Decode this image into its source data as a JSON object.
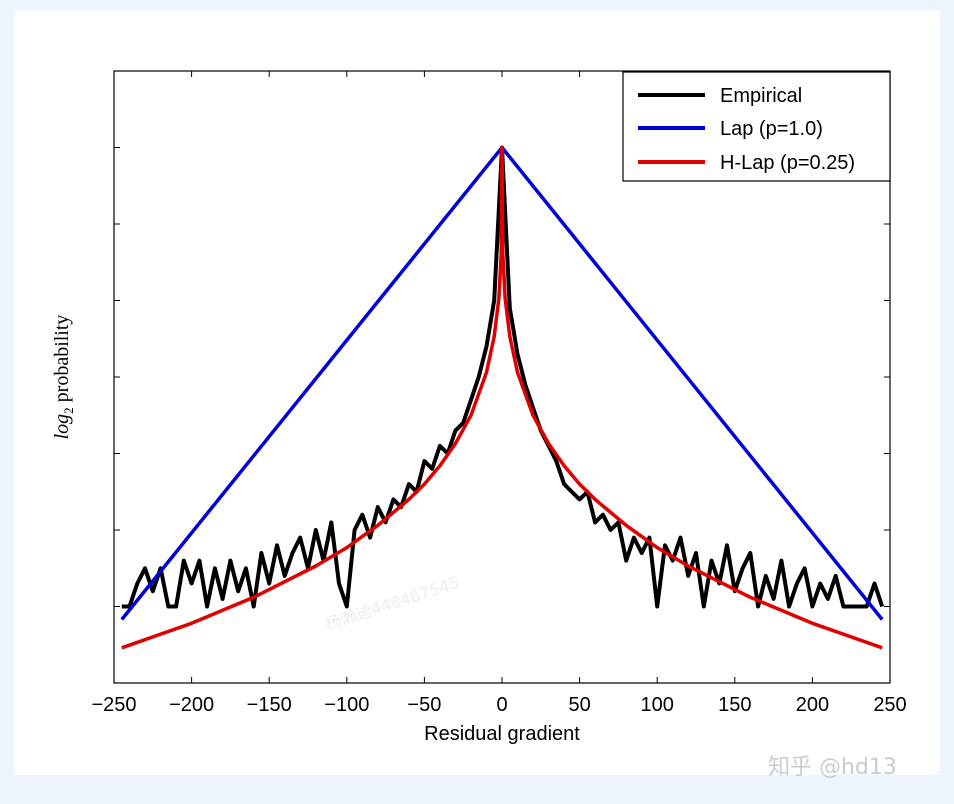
{
  "chart_data": {
    "type": "line",
    "xlabel": "Residual gradient",
    "ylabel": "log2 probability",
    "ylabel_parts": {
      "base": "log",
      "sub": "2",
      "rest": " probability"
    },
    "xlim": [
      -250,
      250
    ],
    "ylim": [
      -1,
      7
    ],
    "xticks": [
      -250,
      -200,
      -150,
      -100,
      -50,
      0,
      50,
      100,
      150,
      200,
      250
    ],
    "xtick_labels": [
      "−250",
      "−200",
      "−150",
      "−100",
      "−50",
      "0",
      "50",
      "100",
      "150",
      "200",
      "250"
    ],
    "yticks": [
      0,
      1,
      2,
      3,
      4,
      5,
      6
    ],
    "ytick_labels_shown": false,
    "grid": false,
    "legend_placement": "top-right",
    "series": [
      {
        "name": "Empirical",
        "color": "#000000",
        "x": [
          -245,
          -240,
          -235,
          -230,
          -225,
          -220,
          -215,
          -210,
          -205,
          -200,
          -195,
          -190,
          -185,
          -180,
          -175,
          -170,
          -165,
          -160,
          -155,
          -150,
          -145,
          -140,
          -135,
          -130,
          -125,
          -120,
          -115,
          -110,
          -105,
          -100,
          -95,
          -90,
          -85,
          -80,
          -75,
          -70,
          -65,
          -60,
          -55,
          -50,
          -45,
          -40,
          -35,
          -30,
          -25,
          -20,
          -15,
          -10,
          -5,
          0,
          5,
          10,
          15,
          20,
          25,
          30,
          35,
          40,
          45,
          50,
          55,
          60,
          65,
          70,
          75,
          80,
          85,
          90,
          95,
          100,
          105,
          110,
          115,
          120,
          125,
          130,
          135,
          140,
          145,
          150,
          155,
          160,
          165,
          170,
          175,
          180,
          185,
          190,
          195,
          200,
          205,
          210,
          215,
          220,
          225,
          230,
          235,
          240,
          245
        ],
        "y": [
          0,
          0,
          0.3,
          0.5,
          0.2,
          0.5,
          0,
          0,
          0.6,
          0.3,
          0.6,
          0,
          0.5,
          0.1,
          0.6,
          0.2,
          0.5,
          0,
          0.7,
          0.3,
          0.8,
          0.4,
          0.7,
          0.9,
          0.5,
          1.0,
          0.6,
          1.1,
          0.3,
          0,
          1.0,
          1.2,
          0.9,
          1.3,
          1.1,
          1.4,
          1.3,
          1.6,
          1.5,
          1.9,
          1.8,
          2.1,
          2.0,
          2.3,
          2.4,
          2.7,
          3.0,
          3.4,
          4.0,
          6.0,
          3.9,
          3.3,
          2.9,
          2.6,
          2.3,
          2.1,
          1.9,
          1.6,
          1.5,
          1.4,
          1.5,
          1.1,
          1.2,
          1.0,
          1.1,
          0.6,
          0.9,
          0.7,
          0.9,
          0,
          0.8,
          0.6,
          0.9,
          0.4,
          0.7,
          0,
          0.6,
          0.3,
          0.8,
          0.2,
          0.5,
          0.7,
          0,
          0.4,
          0.1,
          0.6,
          0,
          0.3,
          0.5,
          0,
          0.3,
          0.1,
          0.4,
          0,
          0,
          0,
          0,
          0.3,
          0
        ]
      },
      {
        "name": "Lap (p=1.0)",
        "color": "#0000d8",
        "x": [
          -245,
          0,
          245
        ],
        "y": [
          -0.17,
          6,
          -0.17
        ]
      },
      {
        "name": "H-Lap (p=0.25)",
        "color": "#e00000",
        "x": [
          -245,
          -200,
          -160,
          -120,
          -100,
          -80,
          -60,
          -50,
          -40,
          -30,
          -20,
          -10,
          -5,
          -2,
          -0.5,
          0,
          0.5,
          2,
          5,
          10,
          20,
          30,
          40,
          50,
          60,
          80,
          100,
          120,
          160,
          200,
          245
        ],
        "y": [
          -0.54,
          -0.22,
          0.12,
          0.53,
          0.77,
          1.06,
          1.4,
          1.6,
          1.84,
          2.13,
          2.5,
          3.06,
          3.53,
          4.03,
          4.61,
          6,
          4.61,
          4.03,
          3.53,
          3.06,
          2.5,
          2.13,
          1.84,
          1.6,
          1.4,
          1.06,
          0.77,
          0.53,
          0.12,
          -0.22,
          -0.54
        ]
      }
    ]
  },
  "watermarks": {
    "site": "知乎 @hd13",
    "faint": "杨瀚迪448467545"
  }
}
